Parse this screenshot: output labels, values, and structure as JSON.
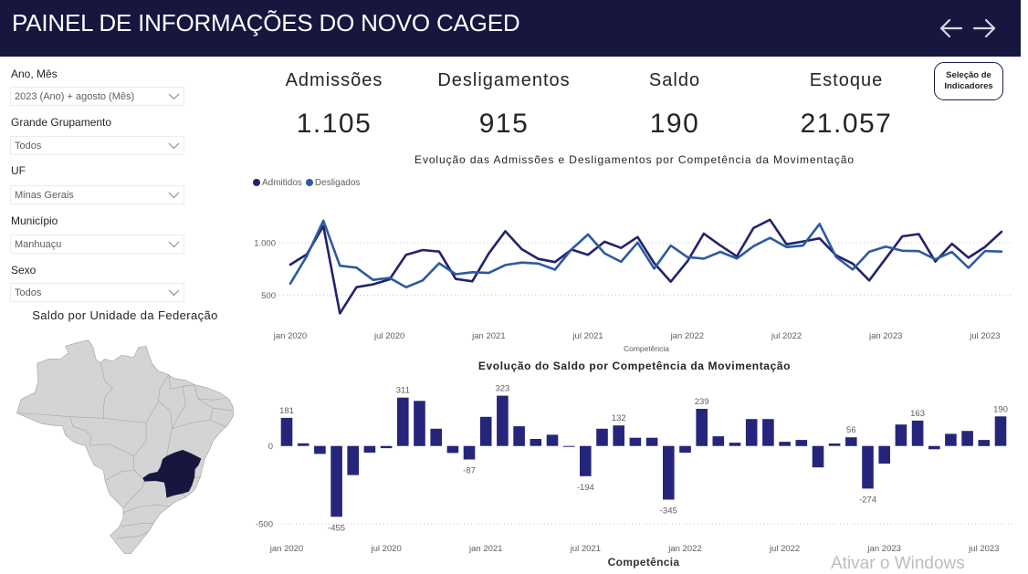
{
  "header": {
    "title": "PAINEL DE INFORMAÇÕES DO NOVO CAGED",
    "back_icon": "arrow-left-icon",
    "forward_icon": "arrow-right-icon"
  },
  "filters": [
    {
      "label": "Ano, Mês",
      "value": "2023 (Ano) + agosto (Mês)"
    },
    {
      "label": "Grande Grupamento",
      "value": "Todos"
    },
    {
      "label": "UF",
      "value": "Minas Gerais"
    },
    {
      "label": "Município",
      "value": "Manhuaçu"
    },
    {
      "label": "Sexo",
      "value": "Todos"
    }
  ],
  "map": {
    "title": "Saldo por Unidade da Federação",
    "highlighted_state": "Minas Gerais",
    "highlight_color": "#16163f",
    "base_color": "#d4d4d4"
  },
  "kpis": [
    {
      "label": "Admissões",
      "value": "1.105"
    },
    {
      "label": "Desligamentos",
      "value": "915"
    },
    {
      "label": "Saldo",
      "value": "190"
    },
    {
      "label": "Estoque",
      "value": "21.057"
    }
  ],
  "indicator_button": {
    "line1": "Seleção de",
    "line2": "Indicadores"
  },
  "watermark": "Ativar o Windows",
  "colors": {
    "header_bg": "#16163f",
    "bar": "#25267b",
    "admitidos": "#22226e",
    "desligados": "#2d5aa0"
  },
  "chart_data": [
    {
      "type": "line",
      "title": "Evolução das Admissões e Desligamentos por Competência da Movimentação",
      "xlabel": "Competência",
      "ylabel": "",
      "legend": "top-left",
      "grid": true,
      "ylim": [
        250,
        1450
      ],
      "y_ticks": [
        {
          "value": 1000,
          "label": "1.000"
        },
        {
          "value": 500,
          "label": "500"
        }
      ],
      "x_ticks": [
        "jan 2020",
        "jul 2020",
        "jan 2021",
        "jul 2021",
        "jan 2022",
        "jul 2022",
        "jan 2023",
        "jul 2023"
      ],
      "categories": [
        "jan 2020",
        "fev 2020",
        "mar 2020",
        "abr 2020",
        "mai 2020",
        "jun 2020",
        "jul 2020",
        "ago 2020",
        "set 2020",
        "out 2020",
        "nov 2020",
        "dez 2020",
        "jan 2021",
        "fev 2021",
        "mar 2021",
        "abr 2021",
        "mai 2021",
        "jun 2021",
        "jul 2021",
        "ago 2021",
        "set 2021",
        "out 2021",
        "nov 2021",
        "dez 2021",
        "jan 2022",
        "fev 2022",
        "mar 2022",
        "abr 2022",
        "mai 2022",
        "jun 2022",
        "jul 2022",
        "ago 2022",
        "set 2022",
        "out 2022",
        "nov 2022",
        "dez 2022",
        "jan 2023",
        "fev 2023",
        "mar 2023",
        "abr 2023",
        "mai 2023",
        "jun 2023",
        "jul 2023",
        "ago 2023"
      ],
      "series": [
        {
          "name": "Admitidos",
          "color": "#22226e",
          "values": [
            791,
            890,
            1160,
            325,
            575,
            602,
            650,
            885,
            930,
            915,
            654,
            631,
            898,
            1110,
            938,
            846,
            815,
            935,
            885,
            1010,
            950,
            1055,
            805,
            628,
            820,
            1087,
            975,
            870,
            1140,
            1220,
            985,
            1012,
            1042,
            880,
            800,
            640,
            850,
            1061,
            1083,
            820,
            990,
            857,
            960,
            1105
          ]
        },
        {
          "name": "Desligados",
          "color": "#2d5aa0",
          "values": [
            610,
            873,
            1211,
            780,
            762,
            645,
            664,
            574,
            640,
            804,
            699,
            718,
            711,
            787,
            811,
            801,
            743,
            937,
            1079,
            899,
            818,
            1002,
            752,
            973,
            863,
            848,
            913,
            849,
            967,
            1047,
            958,
            973,
            1180,
            864,
            744,
            914,
            963,
            923,
            920,
            841,
            912,
            760,
            921,
            915
          ]
        }
      ]
    },
    {
      "type": "bar",
      "title": "Evolução do Saldo por Competência da Movimentação",
      "xlabel": "Competência",
      "ylabel": "",
      "grid": true,
      "ylim": [
        -500,
        400
      ],
      "y_ticks": [
        {
          "value": 0,
          "label": "0"
        },
        {
          "value": -500,
          "label": "-500"
        }
      ],
      "x_ticks": [
        "jan 2020",
        "jul 2020",
        "jan 2021",
        "jul 2021",
        "jan 2022",
        "jul 2022",
        "jan 2023",
        "jul 2023"
      ],
      "categories": [
        "jan 2020",
        "fev 2020",
        "mar 2020",
        "abr 2020",
        "mai 2020",
        "jun 2020",
        "jul 2020",
        "ago 2020",
        "set 2020",
        "out 2020",
        "nov 2020",
        "dez 2020",
        "jan 2021",
        "fev 2021",
        "mar 2021",
        "abr 2021",
        "mai 2021",
        "jun 2021",
        "jul 2021",
        "ago 2021",
        "set 2021",
        "out 2021",
        "nov 2021",
        "dez 2021",
        "jan 2022",
        "fev 2022",
        "mar 2022",
        "abr 2022",
        "mai 2022",
        "jun 2022",
        "jul 2022",
        "ago 2022",
        "set 2022",
        "out 2022",
        "nov 2022",
        "dez 2022",
        "jan 2023",
        "fev 2023",
        "mar 2023",
        "abr 2023",
        "mai 2023",
        "jun 2023",
        "jul 2023",
        "ago 2023"
      ],
      "series": [
        {
          "name": "Saldo",
          "color": "#25267b",
          "values": [
            181,
            17,
            -51,
            -455,
            -187,
            -43,
            -14,
            311,
            290,
            111,
            -45,
            -87,
            187,
            323,
            127,
            45,
            72,
            -2,
            -194,
            111,
            132,
            53,
            53,
            -345,
            -43,
            239,
            62,
            21,
            173,
            173,
            27,
            39,
            -138,
            16,
            56,
            -274,
            -113,
            138,
            163,
            -21,
            78,
            97,
            39,
            190
          ]
        }
      ],
      "data_labels": [
        "181",
        null,
        null,
        "-455",
        null,
        null,
        null,
        "311",
        null,
        null,
        null,
        "-87",
        null,
        "323",
        null,
        null,
        null,
        null,
        "-194",
        null,
        "132",
        null,
        null,
        "-345",
        null,
        "239",
        null,
        null,
        null,
        null,
        null,
        null,
        null,
        null,
        "56",
        "-274",
        null,
        null,
        "163",
        null,
        null,
        null,
        null,
        "190"
      ]
    }
  ]
}
